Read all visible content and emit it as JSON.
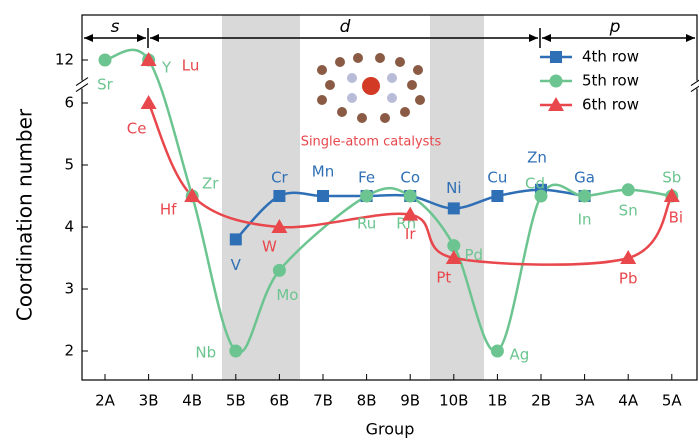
{
  "chart_data": {
    "type": "line",
    "y_label": "Coordination number",
    "x_label": "Group",
    "categories": [
      "2A",
      "3B",
      "4B",
      "5B",
      "6B",
      "7B",
      "8B",
      "9B",
      "10B",
      "1B",
      "2B",
      "3A",
      "4A",
      "5A"
    ],
    "ylim": [
      1.5,
      12.6
    ],
    "y_break": [
      6.2,
      11.7
    ],
    "yticks": [
      2,
      3,
      4,
      5,
      6,
      12
    ],
    "legend": "upper right",
    "annotations": {
      "regions": [
        "s",
        "d",
        "p"
      ],
      "inset": "Single-atom catalysts"
    },
    "series": [
      {
        "name": "4th row",
        "color": "#2e6fb5",
        "marker": "square",
        "values": [
          null,
          null,
          null,
          3.8,
          4.5,
          4.5,
          4.5,
          4.5,
          4.3,
          4.5,
          4.6,
          4.5,
          null,
          null
        ],
        "point_labels": [
          null,
          null,
          null,
          "V",
          "Cr",
          "Mn",
          "Fe",
          "Co",
          "Ni",
          "Cu",
          "Zn",
          "Ga",
          null,
          null
        ]
      },
      {
        "name": "5th row",
        "color": "#6cc590",
        "marker": "circle",
        "values": [
          12,
          12,
          4.5,
          2,
          3.3,
          null,
          4.5,
          4.5,
          3.7,
          2,
          4.5,
          4.5,
          4.6,
          4.5
        ],
        "point_labels": [
          "Sr",
          "Y",
          "Zr",
          "Nb",
          "Mo",
          null,
          "Ru",
          "Rh",
          "Pd",
          "Ag",
          "Cd",
          "In",
          "Sn",
          "Sb"
        ]
      },
      {
        "name": "6th row",
        "color": "#e8474c",
        "marker": "triangle",
        "values": [
          null,
          6,
          4.5,
          null,
          4,
          null,
          null,
          4.2,
          3.5,
          null,
          null,
          null,
          3.5,
          4.5
        ],
        "point_labels": [
          null,
          "Ce",
          "Hf",
          null,
          "W",
          null,
          null,
          "Ir",
          "Pt",
          null,
          null,
          null,
          "Pb",
          "Bi"
        ],
        "extra_point": {
          "category": "3B",
          "value": 12,
          "label": "Lu"
        }
      }
    ]
  }
}
